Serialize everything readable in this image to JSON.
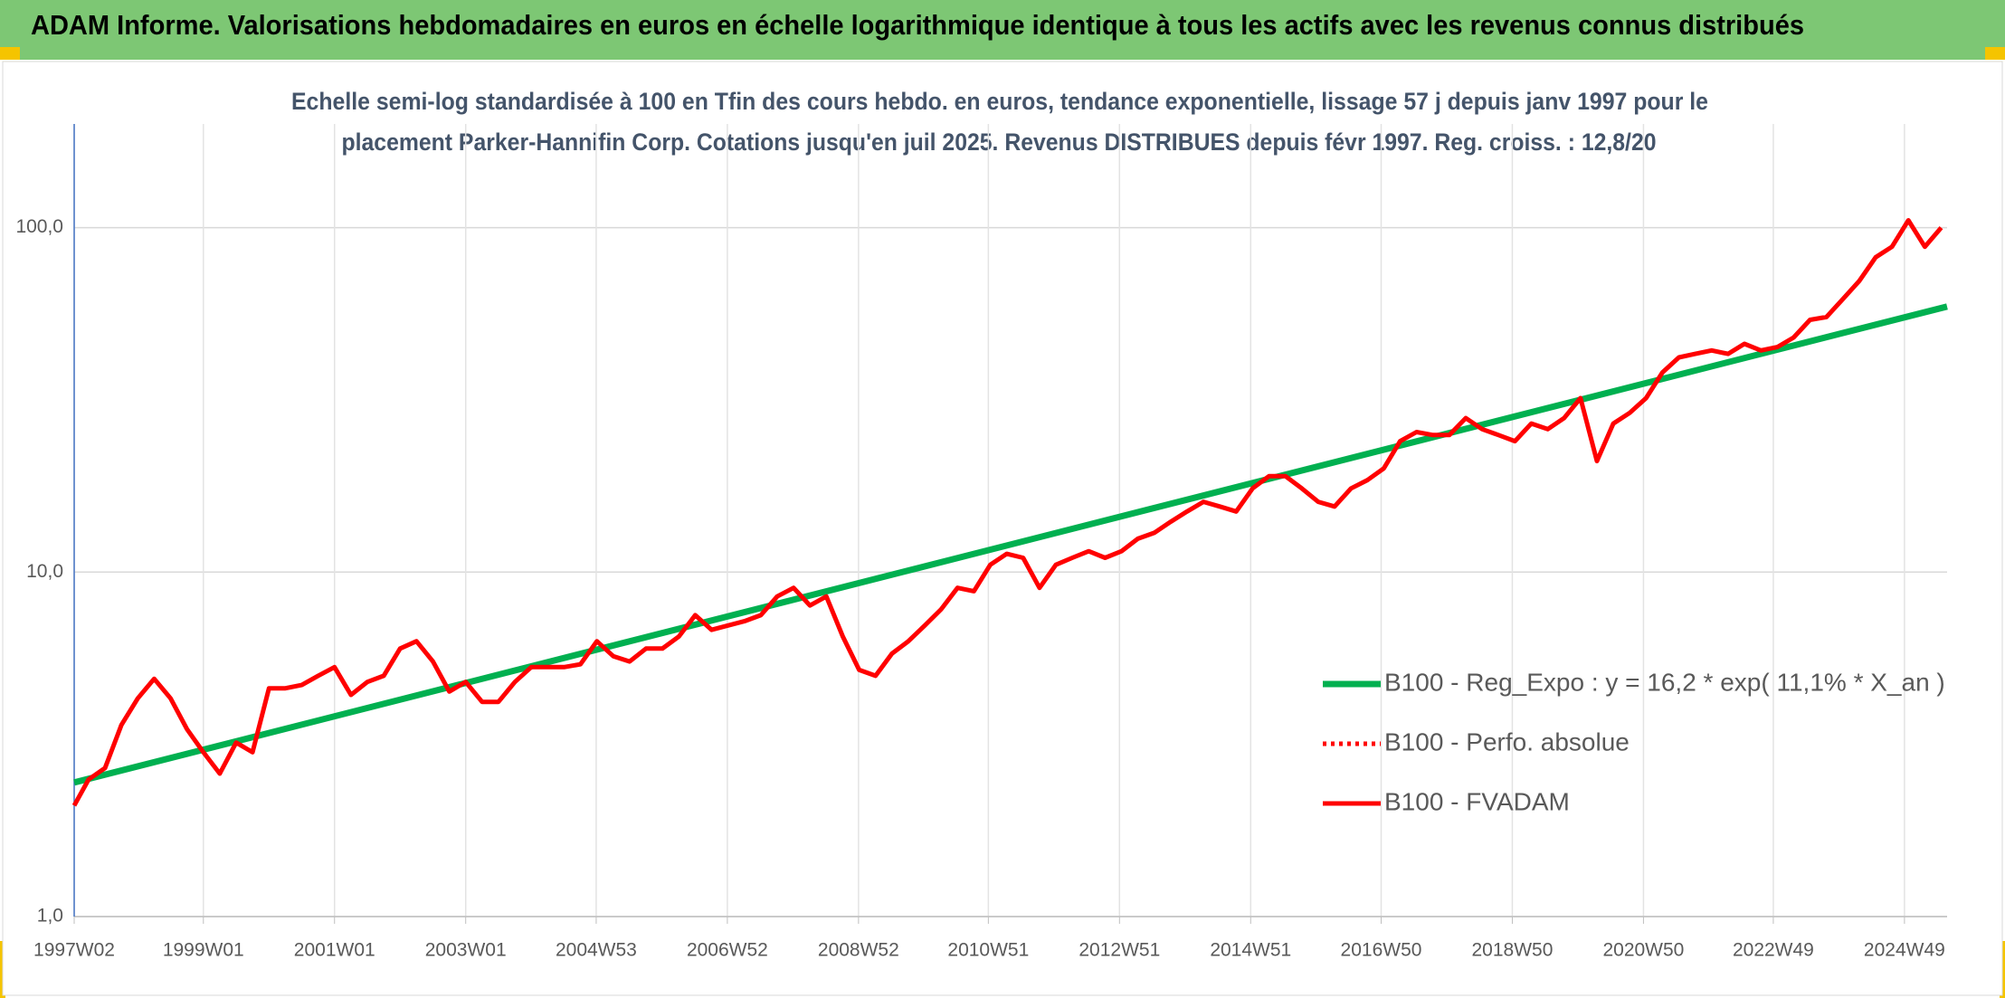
{
  "chart_data": {
    "type": "line",
    "title": "ADAM Informe. Valorisations hebdomadaires en euros en échelle logarithmique identique à tous les actifs avec les revenus connus distribués",
    "subtitle": [
      "Echelle semi-log standardisée à 100 en Tfin des cours hebdo. en euros, tendance exponentielle, lissage 57 j depuis janv 1997 pour le",
      "placement Parker-Hannifin Corp. Cotations jusqu'en juil 2025. Revenus DISTRIBUES depuis févr 1997. Reg. croiss. : 12,8/20"
    ],
    "log_y": true,
    "grid": true,
    "legend": "lower right",
    "ylim": [
      1,
      200
    ],
    "yticks": [
      {
        "value": 1,
        "label": "1,0"
      },
      {
        "value": 10,
        "label": "10,0"
      },
      {
        "value": 100,
        "label": "100,0"
      }
    ],
    "xlim": [
      1997.03,
      2025.59
    ],
    "xticks": [
      {
        "value": 1997.03,
        "label": "1997W02"
      },
      {
        "value": 1999.0,
        "label": "1999W01"
      },
      {
        "value": 2001.0,
        "label": "2001W01"
      },
      {
        "value": 2003.0,
        "label": "2003W01"
      },
      {
        "value": 2004.99,
        "label": "2004W53"
      },
      {
        "value": 2006.99,
        "label": "2006W52"
      },
      {
        "value": 2008.99,
        "label": "2008W52"
      },
      {
        "value": 2010.97,
        "label": "2010W51"
      },
      {
        "value": 2012.97,
        "label": "2012W51"
      },
      {
        "value": 2014.97,
        "label": "2014W51"
      },
      {
        "value": 2016.96,
        "label": "2016W50"
      },
      {
        "value": 2018.96,
        "label": "2018W50"
      },
      {
        "value": 2020.96,
        "label": "2020W50"
      },
      {
        "value": 2022.94,
        "label": "2022W49"
      },
      {
        "value": 2024.94,
        "label": "2024W49"
      }
    ],
    "x": [
      1997.03,
      1997.25,
      1997.5,
      1997.75,
      1998.0,
      1998.25,
      1998.5,
      1998.75,
      1999.0,
      1999.25,
      1999.5,
      1999.75,
      2000.0,
      2000.25,
      2000.5,
      2000.75,
      2001.0,
      2001.25,
      2001.5,
      2001.75,
      2002.0,
      2002.25,
      2002.5,
      2002.75,
      2003.0,
      2003.25,
      2003.5,
      2003.75,
      2004.0,
      2004.25,
      2004.5,
      2004.75,
      2005.0,
      2005.25,
      2005.5,
      2005.75,
      2006.0,
      2006.25,
      2006.5,
      2006.75,
      2007.0,
      2007.25,
      2007.5,
      2007.75,
      2008.0,
      2008.25,
      2008.5,
      2008.75,
      2009.0,
      2009.25,
      2009.5,
      2009.75,
      2010.0,
      2010.25,
      2010.5,
      2010.75,
      2011.0,
      2011.25,
      2011.5,
      2011.75,
      2012.0,
      2012.25,
      2012.5,
      2012.75,
      2013.0,
      2013.25,
      2013.5,
      2013.75,
      2014.0,
      2014.25,
      2014.5,
      2014.75,
      2015.0,
      2015.25,
      2015.5,
      2015.75,
      2016.0,
      2016.25,
      2016.5,
      2016.75,
      2017.0,
      2017.25,
      2017.5,
      2017.75,
      2018.0,
      2018.25,
      2018.5,
      2018.75,
      2019.0,
      2019.25,
      2019.5,
      2019.75,
      2020.0,
      2020.25,
      2020.5,
      2020.75,
      2021.0,
      2021.25,
      2021.5,
      2021.75,
      2022.0,
      2022.25,
      2022.5,
      2022.75,
      2023.0,
      2023.25,
      2023.5,
      2023.75,
      2024.0,
      2024.25,
      2024.5,
      2024.75,
      2025.0,
      2025.25,
      2025.5
    ],
    "series": [
      {
        "name": "B100 - Reg_Expo : y = 16,2 * exp( 11,1% *  X_an )",
        "color": "#00b050",
        "style": "solid",
        "x": [
          1997.03,
          2025.59
        ],
        "values": [
          2.45,
          59
        ]
      },
      {
        "name": "B100 - Perfo. absolue",
        "color": "#ff0000",
        "style": "dotted",
        "x": [],
        "values": []
      },
      {
        "name": "B100 - FVADAM",
        "color": "#ff0000",
        "style": "solid",
        "values": [
          2.1,
          2.5,
          2.7,
          3.6,
          4.3,
          4.9,
          4.3,
          3.5,
          3.0,
          2.6,
          3.2,
          3.0,
          4.6,
          4.6,
          4.7,
          5.0,
          5.3,
          4.4,
          4.8,
          5.0,
          6.0,
          6.3,
          5.5,
          4.5,
          4.8,
          4.2,
          4.2,
          4.8,
          5.3,
          5.3,
          5.3,
          5.4,
          6.3,
          5.7,
          5.5,
          6.0,
          6.0,
          6.5,
          7.5,
          6.8,
          7.0,
          7.2,
          7.5,
          8.5,
          9.0,
          8.0,
          8.5,
          6.5,
          5.2,
          5.0,
          5.8,
          6.3,
          7.0,
          7.8,
          9.0,
          8.8,
          10.5,
          11.3,
          11.0,
          9.0,
          10.5,
          11.0,
          11.5,
          11.0,
          11.5,
          12.5,
          13.0,
          14.0,
          15.0,
          16.0,
          15.5,
          15.0,
          17.5,
          19.0,
          19.0,
          17.5,
          16.0,
          15.5,
          17.5,
          18.5,
          20.0,
          24.0,
          25.5,
          25.0,
          25.0,
          28.0,
          26.0,
          25.0,
          24.0,
          27.0,
          26.0,
          28.0,
          32.0,
          21.0,
          27.0,
          29.0,
          32.0,
          38.0,
          42.0,
          43.0,
          44.0,
          43.0,
          46.0,
          44.0,
          45.0,
          48.0,
          54.0,
          55.0,
          62.0,
          70.0,
          82.0,
          88.0,
          105.0,
          88.0,
          100.0
        ]
      }
    ]
  }
}
